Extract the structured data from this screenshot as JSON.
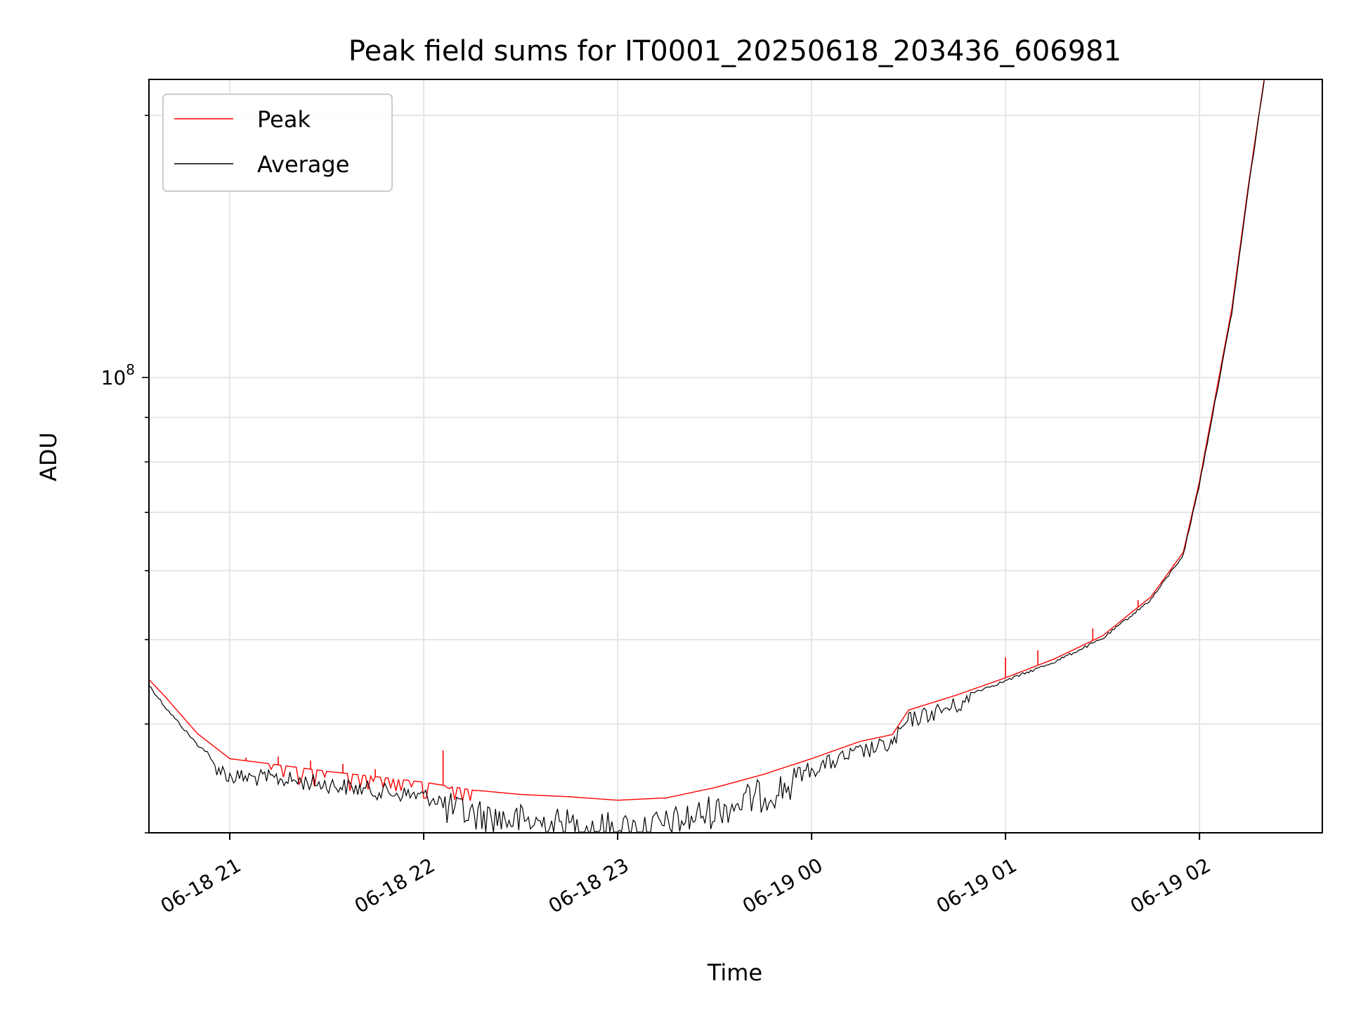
{
  "chart_data": {
    "type": "line",
    "title": "Peak field sums for IT0001_20250618_203436_606981",
    "xlabel": "Time",
    "ylabel": "ADU",
    "x_ticks": [
      "06-18 21",
      "06-18 22",
      "06-18 23",
      "06-19 00",
      "06-19 01",
      "06-19 02"
    ],
    "y_tick_label": {
      "base": "10",
      "exp": "8"
    },
    "y_scale": "log",
    "ylim": [
      30000000,
      220000000
    ],
    "xlim": [
      "2025-06-18 20:35",
      "2025-06-19 02:38"
    ],
    "grid": true,
    "legend_position": "upper-left",
    "colors": {
      "peak": "#ff0000",
      "average": "#000000"
    },
    "series": [
      {
        "name": "Peak",
        "x": [
          "2025-06-18 20:35",
          "2025-06-18 20:40",
          "2025-06-18 20:50",
          "2025-06-18 21:00",
          "2025-06-18 21:15",
          "2025-06-18 21:30",
          "2025-06-18 21:45",
          "2025-06-18 22:00",
          "2025-06-18 22:15",
          "2025-06-18 22:30",
          "2025-06-18 22:45",
          "2025-06-18 23:00",
          "2025-06-18 23:15",
          "2025-06-18 23:30",
          "2025-06-18 23:45",
          "2025-06-19 00:00",
          "2025-06-19 00:15",
          "2025-06-19 00:25",
          "2025-06-19 00:30",
          "2025-06-19 00:45",
          "2025-06-19 01:00",
          "2025-06-19 01:15",
          "2025-06-19 01:30",
          "2025-06-19 01:45",
          "2025-06-19 01:55",
          "2025-06-19 02:00",
          "2025-06-19 02:10",
          "2025-06-19 02:15",
          "2025-06-19 02:20"
        ],
        "y": [
          45000000,
          43000000,
          39000000,
          36500000,
          35900000,
          35300000,
          34800000,
          34300000,
          33600000,
          33200000,
          33000000,
          32700000,
          32900000,
          33800000,
          35000000,
          36500000,
          38200000,
          38900000,
          41500000,
          43200000,
          45200000,
          47500000,
          50500000,
          56000000,
          63000000,
          76000000,
          120000000,
          165000000,
          220000000
        ],
        "spikes": [
          {
            "x": "2025-06-18 20:52",
            "y": 38500000
          },
          {
            "x": "2025-06-18 21:05",
            "y": 36600000
          },
          {
            "x": "2025-06-18 21:15",
            "y": 36700000
          },
          {
            "x": "2025-06-18 21:25",
            "y": 36300000
          },
          {
            "x": "2025-06-18 21:35",
            "y": 36000000
          },
          {
            "x": "2025-06-18 21:45",
            "y": 35500000
          },
          {
            "x": "2025-06-18 22:06",
            "y": 37300000
          },
          {
            "x": "2025-06-19 01:00",
            "y": 47700000
          },
          {
            "x": "2025-06-19 01:10",
            "y": 48600000
          },
          {
            "x": "2025-06-19 01:27",
            "y": 51500000
          },
          {
            "x": "2025-06-19 01:41",
            "y": 55500000
          },
          {
            "x": "2025-06-19 01:52",
            "y": 61000000
          }
        ]
      },
      {
        "name": "Average",
        "x": [
          "2025-06-18 20:35",
          "2025-06-18 20:40",
          "2025-06-18 20:50",
          "2025-06-18 21:00",
          "2025-06-18 21:15",
          "2025-06-18 21:30",
          "2025-06-18 21:45",
          "2025-06-18 22:00",
          "2025-06-18 22:15",
          "2025-06-18 22:30",
          "2025-06-18 22:45",
          "2025-06-18 23:00",
          "2025-06-18 23:15",
          "2025-06-18 23:30",
          "2025-06-18 23:45",
          "2025-06-19 00:00",
          "2025-06-19 00:15",
          "2025-06-19 00:25",
          "2025-06-19 00:30",
          "2025-06-19 00:45",
          "2025-06-19 01:00",
          "2025-06-19 01:15",
          "2025-06-19 01:30",
          "2025-06-19 01:45",
          "2025-06-19 01:55",
          "2025-06-19 02:00",
          "2025-06-19 02:10",
          "2025-06-19 02:15",
          "2025-06-19 02:20"
        ],
        "y": [
          44500000,
          42000000,
          38000000,
          35600000,
          35400000,
          34900000,
          34300000,
          33800000,
          33000000,
          32400000,
          32000000,
          31700000,
          32000000,
          33300000,
          34700000,
          36300000,
          38000000,
          38800000,
          41300000,
          43000000,
          45000000,
          47300000,
          50300000,
          55800000,
          62800000,
          75700000,
          119000000,
          164000000,
          220000000
        ],
        "noise": 0.04
      }
    ]
  }
}
